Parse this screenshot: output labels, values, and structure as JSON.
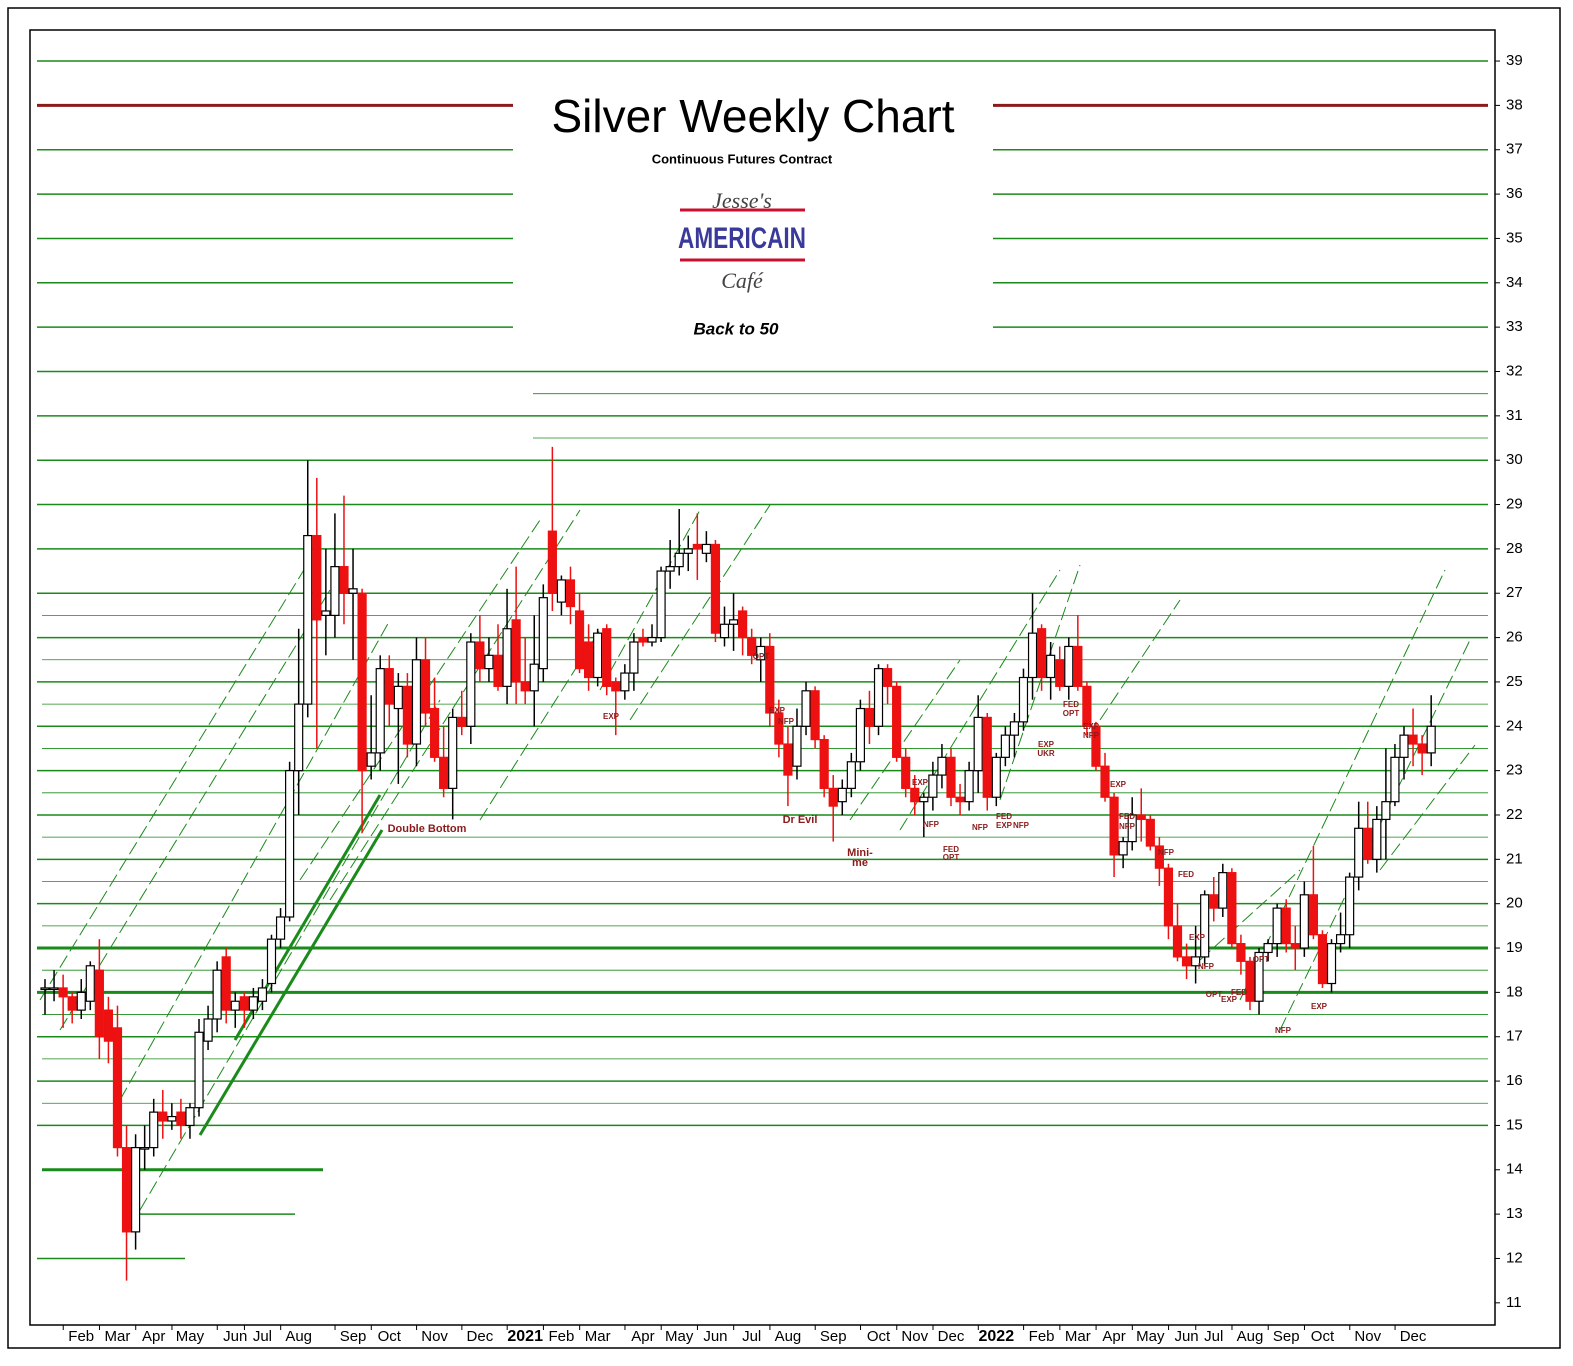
{
  "chart_data": {
    "type": "candlestick",
    "title": "Silver Weekly Chart",
    "subtitle": "Continuous Futures Contract",
    "logo": {
      "top": "Jesse's",
      "middle": "AMERICAIN",
      "bottom": "Café"
    },
    "caption": "Back to 50",
    "up_color": "#ffffff",
    "down_color": "#ee1111",
    "level_color": "#1a8a1a",
    "resistance_color": "#8b1a1a",
    "ylim": [
      10.5,
      39.7
    ],
    "yticks": [
      11,
      12,
      13,
      14,
      15,
      16,
      17,
      18,
      19,
      20,
      21,
      22,
      23,
      24,
      25,
      26,
      27,
      28,
      29,
      30,
      31,
      32,
      33,
      34,
      35,
      36,
      37,
      38,
      39
    ],
    "levels": [
      15,
      16,
      17,
      20,
      21,
      22,
      23,
      24,
      25,
      26,
      27,
      28,
      29,
      30,
      31,
      32,
      33,
      34,
      35,
      36,
      37,
      39
    ],
    "major_levels": [
      18,
      19
    ],
    "resistance_level": 38,
    "minor_levels": [
      15.5,
      16.5,
      17.5,
      18.5,
      19.5,
      20.5,
      21.5,
      22.5,
      23.5,
      24.5,
      25.5,
      26.5,
      30.5,
      31.5
    ],
    "short_levels": [
      14,
      13,
      12
    ],
    "categories": [
      null,
      null,
      null,
      null,
      "Feb",
      null,
      null,
      null,
      "Mar",
      null,
      null,
      null,
      "Apr",
      null,
      null,
      null,
      "May",
      null,
      null,
      null,
      null,
      "Jun",
      null,
      null,
      "Jul",
      null,
      null,
      null,
      "Aug",
      null,
      null,
      null,
      null,
      null,
      "Sep",
      null,
      null,
      null,
      "Oct",
      null,
      null,
      null,
      null,
      "Nov",
      null,
      null,
      null,
      null,
      "Dec",
      null,
      null,
      null,
      null,
      "2021",
      null,
      null,
      null,
      "Feb",
      null,
      null,
      null,
      "Mar",
      null,
      null,
      null,
      null,
      "Apr",
      null,
      null,
      null,
      "May",
      null,
      null,
      null,
      "Jun",
      null,
      null,
      null,
      "Jul",
      null,
      null,
      null,
      "Aug",
      null,
      null,
      null,
      null,
      "Sep",
      null,
      null,
      null,
      null,
      "Oct",
      null,
      null,
      null,
      "Nov",
      null,
      null,
      null,
      "Dec",
      null,
      null,
      null,
      null,
      "2022",
      null,
      null,
      null,
      null,
      "Feb",
      null,
      null,
      null,
      "Mar",
      null,
      null,
      null,
      "Apr",
      null,
      null,
      null,
      "May",
      null,
      null,
      null,
      "Jun",
      null,
      null,
      "Jul",
      null,
      null,
      null,
      "Aug",
      null,
      null,
      null,
      "Sep",
      null,
      null,
      null,
      "Oct",
      null,
      null,
      null,
      null,
      "Nov",
      null,
      null,
      null,
      null,
      "Dec",
      null,
      null
    ],
    "ohlc": [
      [
        18.1,
        18.3,
        17.5,
        18.1
      ],
      [
        18.1,
        18.5,
        17.8,
        18.1
      ],
      [
        18.1,
        18.4,
        17.2,
        17.9
      ],
      [
        17.9,
        18.0,
        17.3,
        17.6
      ],
      [
        17.6,
        18.3,
        17.4,
        18.0
      ],
      [
        17.8,
        18.7,
        17.6,
        18.6
      ],
      [
        18.5,
        19.2,
        16.5,
        17.0
      ],
      [
        17.6,
        17.9,
        16.4,
        16.9
      ],
      [
        17.2,
        17.7,
        14.3,
        14.5
      ],
      [
        14.5,
        15.0,
        11.5,
        12.6
      ],
      [
        12.6,
        14.8,
        12.2,
        14.5
      ],
      [
        14.5,
        15.0,
        14.0,
        14.5
      ],
      [
        14.5,
        15.6,
        14.3,
        15.3
      ],
      [
        15.3,
        15.8,
        14.7,
        15.1
      ],
      [
        15.1,
        15.5,
        14.9,
        15.2
      ],
      [
        15.3,
        15.6,
        14.7,
        15.0
      ],
      [
        15.0,
        15.5,
        14.7,
        15.4
      ],
      [
        15.4,
        17.4,
        15.2,
        17.1
      ],
      [
        16.9,
        17.7,
        16.7,
        17.4
      ],
      [
        17.4,
        18.7,
        17.1,
        18.5
      ],
      [
        18.8,
        19.0,
        17.3,
        17.6
      ],
      [
        17.6,
        18.0,
        17.2,
        17.8
      ],
      [
        17.9,
        18.0,
        17.2,
        17.6
      ],
      [
        17.6,
        18.1,
        17.4,
        17.9
      ],
      [
        17.8,
        18.3,
        17.6,
        18.1
      ],
      [
        18.2,
        19.3,
        18.0,
        19.2
      ],
      [
        19.2,
        19.9,
        19.0,
        19.7
      ],
      [
        19.7,
        23.2,
        19.6,
        23.0
      ],
      [
        23.0,
        26.2,
        22.0,
        24.5
      ],
      [
        24.5,
        30.0,
        24.2,
        28.3
      ],
      [
        28.3,
        29.6,
        23.5,
        26.4
      ],
      [
        26.5,
        28.0,
        25.6,
        26.6
      ],
      [
        26.5,
        28.8,
        26.0,
        27.6
      ],
      [
        27.6,
        29.2,
        26.3,
        27.0
      ],
      [
        27.0,
        28.0,
        25.5,
        27.1
      ],
      [
        27.0,
        27.1,
        21.6,
        23.0
      ],
      [
        23.1,
        24.7,
        22.8,
        23.4
      ],
      [
        23.4,
        25.6,
        23.0,
        25.3
      ],
      [
        25.3,
        25.6,
        24.0,
        24.5
      ],
      [
        24.4,
        25.2,
        22.7,
        24.9
      ],
      [
        24.9,
        25.2,
        23.3,
        23.6
      ],
      [
        23.6,
        26.0,
        23.1,
        25.5
      ],
      [
        25.5,
        26.0,
        24.0,
        24.3
      ],
      [
        24.4,
        25.1,
        23.2,
        23.3
      ],
      [
        23.3,
        24.0,
        22.4,
        22.6
      ],
      [
        22.6,
        24.4,
        21.9,
        24.2
      ],
      [
        24.2,
        24.8,
        23.8,
        24.0
      ],
      [
        24.0,
        26.1,
        23.6,
        25.9
      ],
      [
        25.9,
        26.5,
        25.0,
        25.3
      ],
      [
        25.3,
        26.0,
        25.0,
        25.6
      ],
      [
        25.6,
        26.3,
        24.8,
        24.9
      ],
      [
        24.9,
        27.1,
        24.5,
        26.2
      ],
      [
        26.4,
        27.6,
        24.5,
        25.0
      ],
      [
        25.0,
        26.0,
        24.5,
        24.8
      ],
      [
        24.8,
        26.5,
        24.0,
        25.4
      ],
      [
        25.3,
        27.2,
        25.0,
        26.9
      ],
      [
        28.4,
        30.3,
        26.6,
        27.0
      ],
      [
        26.8,
        27.4,
        26.5,
        27.3
      ],
      [
        27.3,
        27.6,
        26.3,
        26.7
      ],
      [
        26.6,
        27.0,
        25.2,
        25.3
      ],
      [
        25.9,
        26.3,
        24.8,
        25.1
      ],
      [
        25.1,
        26.2,
        24.9,
        26.1
      ],
      [
        26.2,
        26.3,
        24.7,
        24.9
      ],
      [
        25.0,
        25.1,
        23.8,
        24.8
      ],
      [
        24.8,
        25.4,
        24.6,
        25.2
      ],
      [
        25.2,
        26.1,
        24.8,
        25.9
      ],
      [
        26.0,
        26.2,
        25.8,
        25.9
      ],
      [
        25.9,
        26.3,
        25.8,
        26.0
      ],
      [
        26.0,
        27.6,
        25.9,
        27.5
      ],
      [
        27.5,
        28.2,
        27.1,
        27.6
      ],
      [
        27.6,
        28.9,
        27.4,
        27.9
      ],
      [
        27.9,
        28.3,
        27.5,
        28.0
      ],
      [
        28.1,
        28.8,
        27.3,
        28.0
      ],
      [
        27.9,
        28.4,
        27.7,
        28.1
      ],
      [
        28.1,
        28.2,
        25.9,
        26.1
      ],
      [
        26.0,
        26.7,
        25.8,
        26.3
      ],
      [
        26.3,
        27.0,
        25.7,
        26.4
      ],
      [
        26.6,
        26.7,
        25.6,
        26.0
      ],
      [
        26.0,
        26.2,
        25.4,
        25.6
      ],
      [
        25.5,
        26.0,
        25.0,
        25.8
      ],
      [
        25.8,
        26.1,
        24.0,
        24.3
      ],
      [
        24.3,
        24.6,
        23.3,
        23.6
      ],
      [
        23.6,
        24.0,
        22.2,
        22.9
      ],
      [
        23.1,
        24.4,
        22.8,
        24.0
      ],
      [
        24.0,
        25.0,
        23.8,
        24.8
      ],
      [
        24.8,
        24.9,
        23.5,
        23.7
      ],
      [
        23.7,
        23.8,
        22.4,
        22.6
      ],
      [
        22.6,
        22.9,
        21.4,
        22.2
      ],
      [
        22.3,
        22.8,
        22.0,
        22.6
      ],
      [
        22.6,
        23.4,
        22.4,
        23.2
      ],
      [
        23.2,
        24.6,
        23.0,
        24.4
      ],
      [
        24.4,
        24.8,
        23.6,
        24.0
      ],
      [
        24.0,
        25.4,
        23.8,
        25.3
      ],
      [
        25.3,
        25.4,
        24.5,
        24.9
      ],
      [
        24.9,
        25.0,
        23.2,
        23.3
      ],
      [
        23.3,
        23.5,
        22.4,
        22.6
      ],
      [
        22.6,
        22.9,
        22.0,
        22.3
      ],
      [
        22.3,
        22.5,
        21.5,
        22.4
      ],
      [
        22.4,
        23.2,
        22.1,
        22.9
      ],
      [
        22.9,
        23.6,
        22.6,
        23.3
      ],
      [
        23.3,
        23.5,
        22.2,
        22.4
      ],
      [
        22.4,
        22.7,
        22.0,
        22.3
      ],
      [
        22.3,
        23.2,
        22.1,
        23.0
      ],
      [
        23.0,
        24.7,
        22.5,
        24.2
      ],
      [
        24.2,
        24.3,
        22.1,
        22.4
      ],
      [
        22.4,
        23.4,
        22.2,
        23.3
      ],
      [
        23.3,
        24.0,
        23.1,
        23.8
      ],
      [
        23.8,
        24.3,
        23.3,
        24.1
      ],
      [
        24.1,
        25.3,
        23.9,
        25.1
      ],
      [
        25.1,
        27.0,
        24.6,
        26.1
      ],
      [
        26.2,
        26.3,
        24.8,
        25.1
      ],
      [
        25.1,
        25.9,
        24.6,
        25.6
      ],
      [
        25.5,
        25.8,
        24.8,
        24.9
      ],
      [
        24.9,
        26.0,
        24.6,
        25.8
      ],
      [
        25.8,
        26.5,
        24.8,
        24.9
      ],
      [
        24.9,
        25.0,
        23.8,
        24.0
      ],
      [
        24.0,
        24.1,
        23.0,
        23.1
      ],
      [
        23.1,
        23.4,
        22.3,
        22.4
      ],
      [
        22.4,
        22.5,
        20.6,
        21.1
      ],
      [
        21.1,
        21.5,
        20.8,
        21.4
      ],
      [
        21.4,
        22.4,
        21.2,
        22.0
      ],
      [
        22.0,
        22.6,
        21.4,
        21.9
      ],
      [
        21.9,
        22.0,
        21.2,
        21.3
      ],
      [
        21.3,
        21.5,
        20.4,
        20.8
      ],
      [
        20.8,
        20.9,
        19.2,
        19.5
      ],
      [
        19.5,
        20.0,
        18.7,
        18.8
      ],
      [
        18.8,
        19.1,
        18.3,
        18.6
      ],
      [
        18.6,
        19.5,
        18.2,
        18.8
      ],
      [
        18.8,
        20.3,
        18.6,
        20.2
      ],
      [
        20.2,
        20.6,
        19.6,
        19.9
      ],
      [
        19.9,
        20.9,
        19.7,
        20.7
      ],
      [
        20.7,
        20.8,
        19.0,
        19.1
      ],
      [
        19.1,
        19.3,
        18.4,
        18.7
      ],
      [
        18.7,
        18.8,
        17.6,
        17.8
      ],
      [
        17.8,
        19.0,
        17.5,
        18.9
      ],
      [
        18.9,
        19.2,
        18.7,
        19.1
      ],
      [
        19.1,
        20.0,
        18.8,
        19.9
      ],
      [
        19.9,
        20.1,
        18.9,
        19.1
      ],
      [
        19.1,
        19.5,
        18.5,
        19.0
      ],
      [
        19.0,
        20.5,
        18.8,
        20.2
      ],
      [
        20.2,
        21.3,
        19.2,
        19.3
      ],
      [
        19.3,
        19.4,
        18.1,
        18.2
      ],
      [
        18.2,
        19.2,
        18.0,
        19.1
      ],
      [
        19.1,
        19.8,
        18.9,
        19.3
      ],
      [
        19.3,
        20.7,
        19.0,
        20.6
      ],
      [
        20.6,
        22.3,
        20.3,
        21.7
      ],
      [
        21.7,
        22.3,
        20.9,
        21.0
      ],
      [
        21.0,
        22.2,
        20.7,
        21.9
      ],
      [
        21.9,
        23.5,
        21.0,
        22.3
      ],
      [
        22.3,
        23.6,
        22.2,
        23.3
      ],
      [
        23.3,
        24.0,
        22.8,
        23.8
      ],
      [
        23.8,
        24.4,
        23.1,
        23.6
      ],
      [
        23.6,
        23.8,
        22.9,
        23.4
      ],
      [
        23.4,
        24.7,
        23.1,
        24.0
      ]
    ],
    "annotations": [
      "Double Bottom",
      "Dr Evil",
      "Mini-",
      "me",
      "EXP",
      "OPT",
      "EXP",
      "NFP",
      "EXP",
      "NFP",
      "FED",
      "OPT",
      "NFP",
      "FED",
      "EXP",
      "NFP",
      "EXP",
      "UKR",
      "FED",
      "OPT",
      "EXP",
      "NFP",
      "EXP",
      "FED",
      "NFP",
      "NFP",
      "FED",
      "EXP",
      "NFP",
      "OPT",
      "EXP",
      "FED",
      "OPT",
      "NFP",
      "EXP"
    ]
  }
}
